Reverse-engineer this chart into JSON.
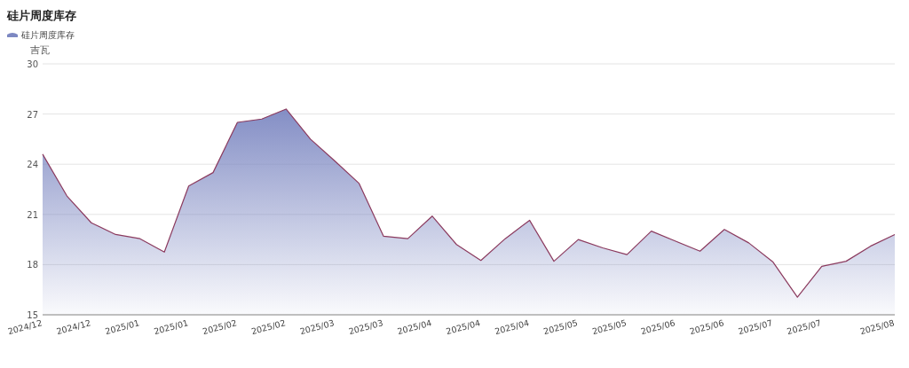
{
  "chart_data": {
    "type": "area",
    "title": "硅片周度库存",
    "ylabel": "吉瓦",
    "categories": [
      "2024/12",
      null,
      "2024/12",
      null,
      "2025/01",
      null,
      "2025/01",
      null,
      "2025/02",
      null,
      "2025/02",
      null,
      "2025/03",
      null,
      "2025/03",
      null,
      "2025/04",
      null,
      "2025/04",
      null,
      "2025/04",
      null,
      "2025/05",
      null,
      "2025/05",
      null,
      "2025/06",
      null,
      "2025/06",
      null,
      "2025/07",
      null,
      "2025/07",
      null,
      null,
      "2025/08"
    ],
    "series": [
      {
        "name": "硅片周度库存",
        "color": "#7d88c2",
        "values": [
          24.6,
          22.1,
          20.5,
          19.8,
          19.55,
          18.75,
          22.7,
          23.5,
          26.5,
          26.7,
          27.3,
          25.5,
          24.2,
          22.85,
          19.7,
          19.55,
          20.9,
          19.2,
          18.25,
          19.55,
          20.65,
          18.2,
          19.5,
          19.0,
          18.6,
          20.0,
          19.4,
          18.8,
          20.1,
          19.3,
          18.15,
          16.05,
          17.9,
          18.2,
          19.1,
          19.8
        ]
      }
    ],
    "ylim": [
      15,
      30
    ],
    "yticks": [
      15,
      18,
      21,
      24,
      27,
      30
    ],
    "grid": "y",
    "legend": "top left",
    "marker": "none",
    "line_style": "solid"
  }
}
